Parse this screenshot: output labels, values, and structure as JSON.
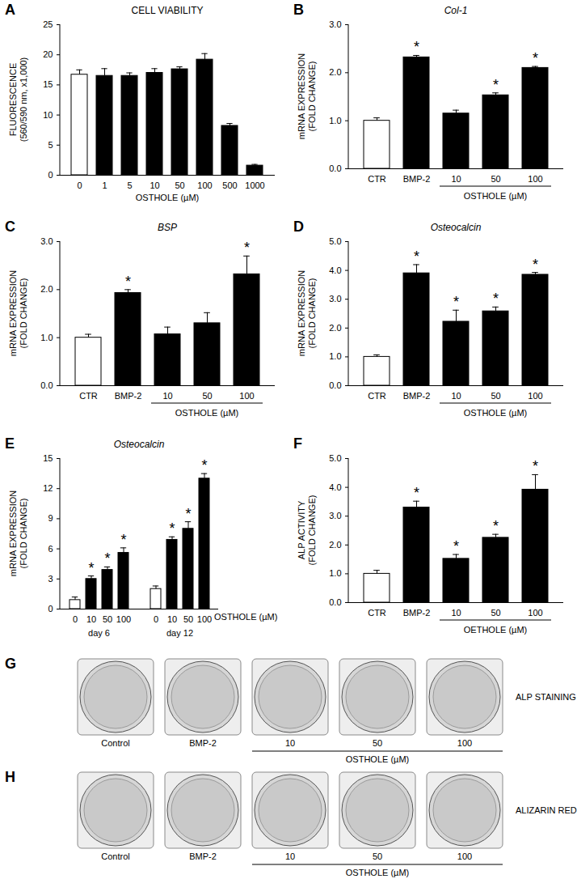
{
  "chart_data": [
    {
      "type": "bar",
      "panel": "A",
      "title": "CELL VIABILITY",
      "ylabel": [
        "FLUORESCENCE",
        "(560/590 nm, x1,000)"
      ],
      "xlabel": "OSTHOLE (µM)",
      "categories": [
        "0",
        "1",
        "5",
        "10",
        "50",
        "100",
        "500",
        "1000"
      ],
      "values": [
        16.7,
        16.5,
        16.5,
        17.0,
        17.6,
        19.2,
        8.2,
        1.6
      ],
      "errors": [
        0.8,
        1.2,
        0.5,
        0.7,
        0.4,
        1.0,
        0.4,
        0.2
      ],
      "colors": [
        "white",
        "black",
        "black",
        "black",
        "black",
        "black",
        "black",
        "black"
      ],
      "significant": [
        false,
        false,
        false,
        false,
        false,
        false,
        false,
        false
      ],
      "ylim": [
        0,
        25
      ],
      "yticks": [
        0,
        5,
        10,
        15,
        20,
        25
      ]
    },
    {
      "type": "bar",
      "panel": "B",
      "title": "Col-1",
      "ylabel": [
        "mRNA EXPRESSION",
        "(FOLD CHANGE)"
      ],
      "categories": [
        "CTR",
        "BMP-2",
        "10",
        "50",
        "100"
      ],
      "values": [
        1.0,
        2.32,
        1.15,
        1.53,
        2.1
      ],
      "errors": [
        0.06,
        0.04,
        0.07,
        0.05,
        0.03
      ],
      "colors": [
        "white",
        "black",
        "black",
        "black",
        "black"
      ],
      "significant": [
        false,
        true,
        false,
        true,
        true
      ],
      "annotation": "*",
      "group": {
        "label": "OSTHOLE (µM)",
        "members": [
          "10",
          "50",
          "100"
        ]
      },
      "ylim": [
        0,
        3
      ],
      "yticks": [
        0,
        1,
        2,
        3
      ]
    },
    {
      "type": "bar",
      "panel": "C",
      "title": "BSP",
      "ylabel": [
        "mRNA EXPRESSION",
        "(FOLD CHANGE)"
      ],
      "categories": [
        "CTR",
        "BMP-2",
        "10",
        "50",
        "100"
      ],
      "values": [
        1.0,
        1.93,
        1.07,
        1.3,
        2.32
      ],
      "errors": [
        0.07,
        0.07,
        0.15,
        0.22,
        0.38
      ],
      "colors": [
        "white",
        "black",
        "black",
        "black",
        "black"
      ],
      "significant": [
        false,
        true,
        false,
        false,
        true
      ],
      "annotation": "*",
      "group": {
        "label": "OSTHOLE (µM)",
        "members": [
          "10",
          "50",
          "100"
        ]
      },
      "ylim": [
        0,
        3
      ],
      "yticks": [
        0,
        1,
        2,
        3
      ]
    },
    {
      "type": "bar",
      "panel": "D",
      "title": "Osteocalcin",
      "ylabel": [
        "mRNA EXPRESSION",
        "(FOLD CHANGE)"
      ],
      "categories": [
        "CTR",
        "BMP-2",
        "10",
        "50",
        "100"
      ],
      "values": [
        1.0,
        3.9,
        2.22,
        2.58,
        3.85
      ],
      "errors": [
        0.07,
        0.3,
        0.4,
        0.15,
        0.08
      ],
      "colors": [
        "white",
        "black",
        "black",
        "black",
        "black"
      ],
      "significant": [
        false,
        true,
        true,
        true,
        true
      ],
      "annotation": "*",
      "group": {
        "label": "OSTHOLE (µM)",
        "members": [
          "10",
          "50",
          "100"
        ]
      },
      "ylim": [
        0,
        5
      ],
      "yticks": [
        0,
        1,
        2,
        3,
        4,
        5
      ]
    },
    {
      "type": "bar",
      "panel": "E",
      "title": "Osteocalcin",
      "ylabel": [
        "mRNA EXPRESSION",
        "(FOLD CHANGE)"
      ],
      "xlabel": "OSTHOLE (µM)",
      "categories": [
        "0",
        "10",
        "50",
        "100"
      ],
      "colors": [
        "white",
        "black",
        "black",
        "black"
      ],
      "annotation": "*",
      "series": [
        {
          "name": "day 6",
          "values": [
            0.9,
            3.0,
            3.9,
            5.6
          ],
          "errors": [
            0.3,
            0.3,
            0.3,
            0.5
          ],
          "significant": [
            false,
            true,
            true,
            true
          ]
        },
        {
          "name": "day 12",
          "values": [
            2.0,
            6.9,
            8.0,
            13.0
          ],
          "errors": [
            0.3,
            0.3,
            0.7,
            0.5
          ],
          "significant": [
            false,
            true,
            true,
            true
          ]
        }
      ],
      "ylim": [
        0,
        15
      ],
      "yticks": [
        0,
        3,
        6,
        9,
        12,
        15
      ]
    },
    {
      "type": "bar",
      "panel": "F",
      "ylabel": [
        "ALP ACTIVITY",
        "(FOLD CHANGE)"
      ],
      "categories": [
        "CTR",
        "BMP-2",
        "10",
        "50",
        "100"
      ],
      "values": [
        1.0,
        3.3,
        1.52,
        2.25,
        3.92
      ],
      "errors": [
        0.12,
        0.22,
        0.15,
        0.12,
        0.52
      ],
      "colors": [
        "white",
        "black",
        "black",
        "black",
        "black"
      ],
      "significant": [
        false,
        true,
        true,
        true,
        true
      ],
      "annotation": "*",
      "group": {
        "label": "OETHOLE (µM)",
        "members": [
          "10",
          "50",
          "100"
        ]
      },
      "ylim": [
        0,
        5
      ],
      "yticks": [
        0,
        1,
        2,
        3,
        4,
        5
      ]
    }
  ],
  "image_panels": [
    {
      "panel": "G",
      "label": "ALP STAINING",
      "wells": [
        "Control",
        "BMP-2",
        "10",
        "50",
        "100"
      ],
      "group": {
        "label": "OSTHOLE (µM)",
        "members": [
          "10",
          "50",
          "100"
        ]
      }
    },
    {
      "panel": "H",
      "label": "ALIZARIN RED",
      "wells": [
        "Control",
        "BMP-2",
        "10",
        "50",
        "100"
      ],
      "group": {
        "label": "OSTHOLE (µM)",
        "members": [
          "10",
          "50",
          "100"
        ]
      }
    }
  ]
}
